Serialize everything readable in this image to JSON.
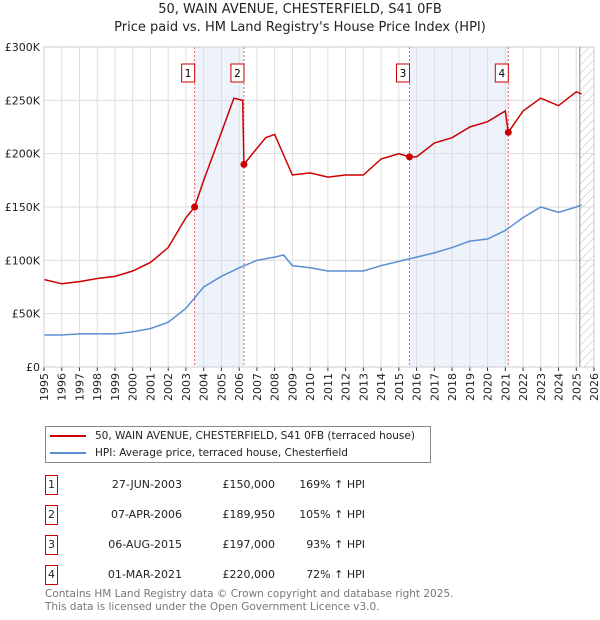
{
  "chart_data": {
    "type": "line",
    "title": "50, WAIN AVENUE, CHESTERFIELD, S41 0FB",
    "subtitle": "Price paid vs. HM Land Registry's House Price Index (HPI)",
    "xlim": [
      1995,
      2026
    ],
    "ylim": [
      0,
      300000
    ],
    "x_ticks": [
      "1995",
      "1996",
      "1997",
      "1998",
      "1999",
      "2000",
      "2001",
      "2002",
      "2003",
      "2004",
      "2005",
      "2006",
      "2007",
      "2008",
      "2009",
      "2010",
      "2011",
      "2012",
      "2013",
      "2014",
      "2015",
      "2016",
      "2017",
      "2018",
      "2019",
      "2020",
      "2021",
      "2022",
      "2023",
      "2024",
      "2025",
      "2026"
    ],
    "y_ticks": [
      {
        "v": 0,
        "label": "£0"
      },
      {
        "v": 50000,
        "label": "£50K"
      },
      {
        "v": 100000,
        "label": "£100K"
      },
      {
        "v": 150000,
        "label": "£150K"
      },
      {
        "v": 200000,
        "label": "£200K"
      },
      {
        "v": 250000,
        "label": "£250K"
      },
      {
        "v": 300000,
        "label": "£300K"
      }
    ],
    "grid": true,
    "shaded_ranges": [
      [
        2003.49,
        2006.27
      ],
      [
        2015.6,
        2021.17
      ]
    ],
    "hatched_from": 2025.2,
    "series": [
      {
        "name": "50, WAIN AVENUE, CHESTERFIELD, S41 0FB (terraced house)",
        "color": "#cc0000",
        "x": [
          1995,
          1996,
          1997,
          1998,
          1999,
          2000,
          2001,
          2002,
          2003,
          2003.49,
          2004,
          2005,
          2005.7,
          2006.2,
          2006.27,
          2007,
          2007.5,
          2008,
          2009,
          2010,
          2011,
          2012,
          2013,
          2014,
          2015,
          2015.6,
          2016,
          2017,
          2018,
          2019,
          2020,
          2021,
          2021.17,
          2022,
          2023,
          2024,
          2025,
          2025.3
        ],
        "y": [
          82000,
          78000,
          80000,
          83000,
          85000,
          90000,
          98000,
          112000,
          140000,
          150000,
          175000,
          220000,
          252000,
          250000,
          189950,
          205000,
          215000,
          218000,
          180000,
          182000,
          178000,
          180000,
          180000,
          195000,
          200000,
          197000,
          197000,
          210000,
          215000,
          225000,
          230000,
          240000,
          220000,
          240000,
          252000,
          245000,
          258000,
          256000
        ]
      },
      {
        "name": "HPI: Average price, terraced house, Chesterfield",
        "color": "#5b8fd4",
        "x": [
          1995,
          1996,
          1997,
          1998,
          1999,
          2000,
          2001,
          2002,
          2003,
          2004,
          2005,
          2006,
          2007,
          2008,
          2008.5,
          2009,
          2010,
          2011,
          2012,
          2013,
          2014,
          2015,
          2016,
          2017,
          2018,
          2019,
          2020,
          2021,
          2022,
          2023,
          2024,
          2025,
          2025.3
        ],
        "y": [
          30000,
          30000,
          31000,
          31000,
          31000,
          33000,
          36000,
          42000,
          55000,
          75000,
          85000,
          93000,
          100000,
          103000,
          105000,
          95000,
          93000,
          90000,
          90000,
          90000,
          95000,
          99000,
          103000,
          107000,
          112000,
          118000,
          120000,
          128000,
          140000,
          150000,
          145000,
          150000,
          152000
        ]
      }
    ],
    "sales": [
      {
        "n": "1",
        "x": 2003.49,
        "y": 150000,
        "date": "27-JUN-2003",
        "price": "£150,000",
        "hpi": "169% ↑ HPI"
      },
      {
        "n": "2",
        "x": 2006.27,
        "y": 189950,
        "date": "07-APR-2006",
        "price": "£189,950",
        "hpi": "105% ↑ HPI"
      },
      {
        "n": "3",
        "x": 2015.6,
        "y": 197000,
        "date": "06-AUG-2015",
        "price": "£197,000",
        "hpi": "93% ↑ HPI"
      },
      {
        "n": "4",
        "x": 2021.17,
        "y": 220000,
        "date": "01-MAR-2021",
        "price": "£220,000",
        "hpi": "72% ↑ HPI"
      }
    ],
    "legend_position": "bottom"
  },
  "footer": {
    "line1": "Contains HM Land Registry data © Crown copyright and database right 2025.",
    "line2": "This data is licensed under the Open Government Licence v3.0."
  }
}
